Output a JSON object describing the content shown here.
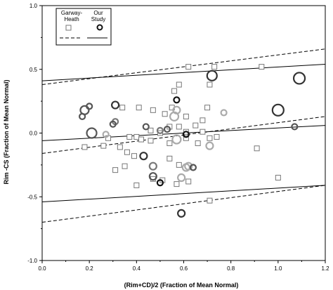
{
  "chart_data": {
    "type": "scatter",
    "title": "",
    "xlabel": "(Rim+CD)/2 (Fraction of Mean Normal)",
    "ylabel": "Rim -CS (Fraction of Mean Normal)",
    "xlim": [
      0.0,
      1.2
    ],
    "ylim": [
      -1.0,
      1.0
    ],
    "x_ticks": [
      "0.0",
      "0.2",
      "0.4",
      "0.6",
      "0.8",
      "1.0",
      "1.2"
    ],
    "y_ticks": [
      "-1.0",
      "-0.5",
      "0.0",
      "0.5",
      "1.0"
    ],
    "grid": false,
    "legend": {
      "placement": "top-left",
      "entries": [
        {
          "name": "Garway-\nHeath",
          "marker": "square",
          "line": "dashed"
        },
        {
          "name": "Our\nStudy",
          "marker": "circle",
          "line": "solid"
        }
      ]
    },
    "series": [
      {
        "name": "Garway-Heath",
        "marker": "square",
        "color": "#777777",
        "points": [
          [
            0.58,
            0.38
          ],
          [
            0.71,
            0.38
          ],
          [
            0.73,
            0.52
          ],
          [
            0.62,
            0.52
          ],
          [
            0.93,
            0.52
          ],
          [
            0.56,
            0.33
          ],
          [
            0.7,
            0.2
          ],
          [
            0.34,
            0.2
          ],
          [
            0.41,
            0.2
          ],
          [
            0.47,
            0.18
          ],
          [
            0.52,
            0.15
          ],
          [
            0.55,
            0.2
          ],
          [
            0.61,
            0.13
          ],
          [
            0.68,
            0.1
          ],
          [
            0.54,
            0.05
          ],
          [
            0.58,
            0.05
          ],
          [
            0.65,
            0.06
          ],
          [
            0.61,
            -0.04
          ],
          [
            0.5,
            0.0
          ],
          [
            0.46,
            0.02
          ],
          [
            0.37,
            -0.03
          ],
          [
            0.4,
            -0.03
          ],
          [
            0.42,
            -0.05
          ],
          [
            0.46,
            -0.06
          ],
          [
            0.54,
            -0.08
          ],
          [
            0.61,
            0.01
          ],
          [
            0.68,
            0.01
          ],
          [
            0.66,
            -0.08
          ],
          [
            0.71,
            -0.04
          ],
          [
            0.74,
            -0.03
          ],
          [
            0.28,
            -0.04
          ],
          [
            0.18,
            -0.11
          ],
          [
            0.26,
            -0.1
          ],
          [
            0.33,
            -0.11
          ],
          [
            0.36,
            -0.15
          ],
          [
            0.39,
            -0.18
          ],
          [
            0.54,
            -0.2
          ],
          [
            0.58,
            -0.25
          ],
          [
            0.35,
            -0.26
          ],
          [
            0.31,
            -0.29
          ],
          [
            0.4,
            -0.41
          ],
          [
            0.47,
            -0.36
          ],
          [
            0.51,
            -0.37
          ],
          [
            0.57,
            -0.4
          ],
          [
            0.62,
            -0.38
          ],
          [
            0.91,
            -0.12
          ],
          [
            1.0,
            -0.35
          ],
          [
            0.71,
            -0.53
          ]
        ]
      },
      {
        "name": "Our Study",
        "marker": "circle",
        "points": [
          [
            0.72,
            0.45,
            7,
            "#333333"
          ],
          [
            1.09,
            0.43,
            8,
            "#333333"
          ],
          [
            1.0,
            0.18,
            8,
            "#333333"
          ],
          [
            0.18,
            0.18,
            6,
            "#555555"
          ],
          [
            0.2,
            0.21,
            4,
            "#555555"
          ],
          [
            0.31,
            0.22,
            5,
            "#333333"
          ],
          [
            0.17,
            0.13,
            4,
            "#555555"
          ],
          [
            0.57,
            0.26,
            4,
            "#111111"
          ],
          [
            0.57,
            0.18,
            5,
            "#aaaaaa"
          ],
          [
            0.77,
            0.16,
            4,
            "#aaaaaa"
          ],
          [
            0.56,
            0.13,
            6,
            "#aaaaaa"
          ],
          [
            0.31,
            0.09,
            4,
            "#777777"
          ],
          [
            0.3,
            0.07,
            4,
            "#555555"
          ],
          [
            0.44,
            0.05,
            4,
            "#555555"
          ],
          [
            0.53,
            0.03,
            4,
            "#555555"
          ],
          [
            0.5,
            0.02,
            4,
            "#777777"
          ],
          [
            0.21,
            0.0,
            7,
            "#555555"
          ],
          [
            0.27,
            -0.01,
            4,
            "#aaaaaa"
          ],
          [
            0.61,
            -0.01,
            4,
            "#111111"
          ],
          [
            0.57,
            -0.05,
            6,
            "#aaaaaa"
          ],
          [
            1.07,
            0.05,
            4,
            "#555555"
          ],
          [
            0.71,
            -0.1,
            5,
            "#aaaaaa"
          ],
          [
            0.43,
            -0.18,
            5,
            "#333333"
          ],
          [
            0.47,
            -0.26,
            5,
            "#777777"
          ],
          [
            0.62,
            -0.26,
            5,
            "#aaaaaa"
          ],
          [
            0.61,
            -0.27,
            5,
            "#aaaaaa"
          ],
          [
            0.64,
            -0.27,
            4,
            "#555555"
          ],
          [
            0.47,
            -0.34,
            5,
            "#555555"
          ],
          [
            0.59,
            -0.35,
            5,
            "#aaaaaa"
          ],
          [
            0.5,
            -0.39,
            4,
            "#111111"
          ],
          [
            0.59,
            -0.63,
            5,
            "#333333"
          ]
        ]
      }
    ],
    "lines": [
      {
        "name": "Garway-Heath mean",
        "style": "dashed",
        "x": [
          0.0,
          1.2
        ],
        "y": [
          -0.16,
          0.13
        ]
      },
      {
        "name": "Garway-Heath upper limit",
        "style": "dashed",
        "x": [
          0.0,
          1.2
        ],
        "y": [
          0.38,
          0.66
        ]
      },
      {
        "name": "Garway-Heath lower limit",
        "style": "dashed",
        "x": [
          0.0,
          1.2
        ],
        "y": [
          -0.7,
          -0.41
        ]
      },
      {
        "name": "Our Study mean",
        "style": "solid",
        "x": [
          0.0,
          1.2
        ],
        "y": [
          -0.06,
          0.06
        ]
      },
      {
        "name": "Our Study upper limit",
        "style": "solid",
        "x": [
          0.0,
          1.2
        ],
        "y": [
          0.41,
          0.54
        ]
      },
      {
        "name": "Our Study lower limit",
        "style": "solid",
        "x": [
          0.0,
          1.2
        ],
        "y": [
          -0.54,
          -0.41
        ]
      }
    ]
  }
}
